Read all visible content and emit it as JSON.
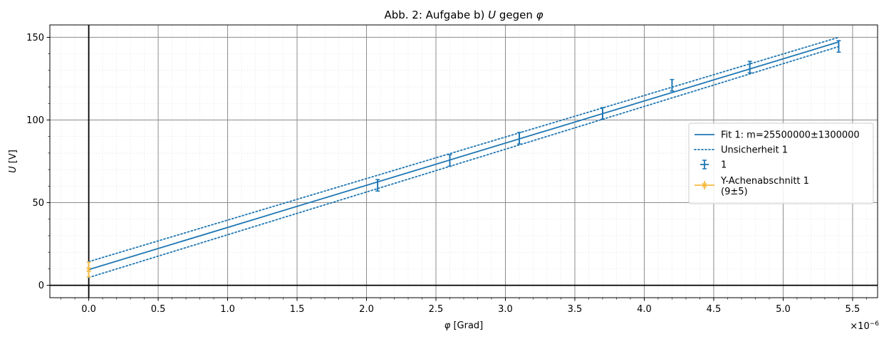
{
  "chart_data": {
    "type": "scatter",
    "title": "Abb. 2: Aufgabe b) U gegen φ",
    "title_parts": {
      "prefix": "Abb. 2: Aufgabe b) ",
      "u": "U",
      "mid": " gegen ",
      "phi": "φ"
    },
    "xlabel": "φ [Grad]",
    "xlabel_parts": {
      "phi": "φ",
      "unit": " [Grad]"
    },
    "ylabel": "U [V]",
    "ylabel_parts": {
      "u": "U",
      "unit": " [V]"
    },
    "x_multiplier_label": "×10",
    "x_multiplier_exp": "−6",
    "xlim": [
      -0.28,
      5.68
    ],
    "ylim": [
      -7.5,
      157.5
    ],
    "x_scale_factor": 1e-06,
    "xticks": [
      0.0,
      0.5,
      1.0,
      1.5,
      2.0,
      2.5,
      3.0,
      3.5,
      4.0,
      4.5,
      5.0,
      5.5
    ],
    "xtick_labels": [
      "0.0",
      "0.5",
      "1.0",
      "1.5",
      "2.0",
      "2.5",
      "3.0",
      "3.5",
      "4.0",
      "4.5",
      "5.0",
      "5.5"
    ],
    "yticks": [
      0,
      50,
      100,
      150
    ],
    "ytick_labels": [
      "0",
      "50",
      "100",
      "150"
    ],
    "grid": true,
    "legend_position": "center-right",
    "series": [
      {
        "name": "1",
        "kind": "errorbar",
        "color": "#1f77b4",
        "points": [
          {
            "x": 2.08,
            "y": 60.5,
            "yerr": 3.5
          },
          {
            "x": 2.6,
            "y": 75.5,
            "yerr": 3.5
          },
          {
            "x": 3.1,
            "y": 89.0,
            "yerr": 3.5
          },
          {
            "x": 3.7,
            "y": 104.0,
            "yerr": 3.5
          },
          {
            "x": 4.2,
            "y": 121.0,
            "yerr": 3.5
          },
          {
            "x": 4.76,
            "y": 132.0,
            "yerr": 3.5
          },
          {
            "x": 5.4,
            "y": 144.5,
            "yerr": 3.5
          }
        ]
      },
      {
        "name": "Fit 1: m=25500000±1300000",
        "kind": "line",
        "color": "#1f77b4",
        "x": [
          0.0,
          5.4
        ],
        "y": [
          9.5,
          147.2
        ]
      },
      {
        "name": "Unsicherheit 1",
        "kind": "dotted",
        "color": "#1f77b4",
        "lines": [
          {
            "x": [
              0.0,
              5.4
            ],
            "y": [
              14.3,
              150.0
            ]
          },
          {
            "x": [
              0.0,
              5.4
            ],
            "y": [
              4.7,
              144.4
            ]
          }
        ]
      },
      {
        "name": "Y-Achenabschnitt 1",
        "name_line2": "(9±5)",
        "kind": "errorbar",
        "color": "#f5b940",
        "points": [
          {
            "x": 0.0,
            "y": 9.5,
            "yerr": 4.5
          }
        ]
      }
    ]
  }
}
